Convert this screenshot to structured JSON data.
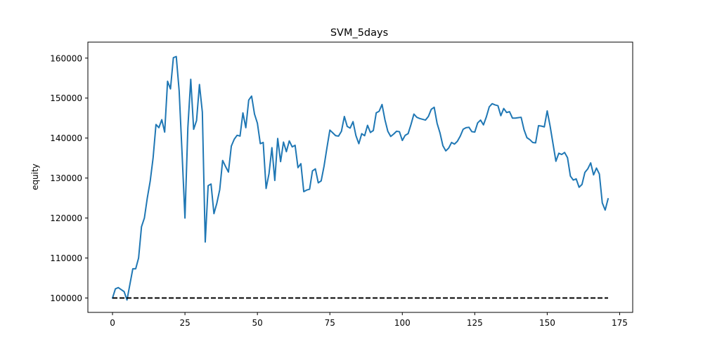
{
  "chart_data": {
    "type": "line",
    "title": "SVM_5days",
    "xlabel": "",
    "ylabel": "equity",
    "xlim": [
      -8.5,
      179.5
    ],
    "ylim": [
      96400,
      164000
    ],
    "xticks": [
      0,
      25,
      50,
      75,
      100,
      125,
      150,
      175
    ],
    "xtick_labels": [
      "0",
      "25",
      "50",
      "75",
      "100",
      "125",
      "150",
      "175"
    ],
    "yticks": [
      100000,
      110000,
      120000,
      130000,
      140000,
      150000,
      160000
    ],
    "ytick_labels": [
      "100000",
      "110000",
      "120000",
      "130000",
      "140000",
      "150000",
      "160000"
    ],
    "grid": false,
    "series": [
      {
        "color": "#1f77b4",
        "style": "solid",
        "x_start": 0,
        "values": [
          100000,
          102300,
          102600,
          102100,
          101600,
          99500,
          103400,
          107300,
          107300,
          110000,
          117800,
          120000,
          125000,
          129200,
          135000,
          143400,
          142600,
          144600,
          141500,
          154200,
          152300,
          160100,
          160400,
          151800,
          136200,
          120000,
          142600,
          154700,
          142200,
          144400,
          153400,
          146500,
          114000,
          128100,
          128500,
          121100,
          123700,
          127100,
          134400,
          132900,
          131500,
          138000,
          139700,
          140700,
          140500,
          146300,
          142600,
          149500,
          150500,
          146000,
          143700,
          138600,
          138900,
          127400,
          131100,
          137600,
          129400,
          139900,
          134100,
          139000,
          136600,
          139300,
          137800,
          138200,
          132600,
          133600,
          126600,
          127000,
          127200,
          131800,
          132300,
          128800,
          129300,
          133000,
          137600,
          142000,
          141300,
          140600,
          140500,
          141700,
          145400,
          142900,
          142500,
          144100,
          140600,
          138600,
          141100,
          140600,
          143200,
          141400,
          141900,
          146300,
          146700,
          148400,
          144600,
          141700,
          140400,
          141000,
          141700,
          141600,
          139400,
          140700,
          141100,
          143400,
          146000,
          145200,
          144900,
          144700,
          144500,
          145400,
          147200,
          147700,
          143700,
          141300,
          138100,
          136800,
          137500,
          138900,
          138500,
          139200,
          140500,
          142200,
          142600,
          142700,
          141600,
          141500,
          143800,
          144500,
          143300,
          145300,
          147800,
          148600,
          148300,
          148100,
          145600,
          147400,
          146400,
          146600,
          145000,
          145000,
          145100,
          145200,
          142100,
          140100,
          139600,
          138900,
          138800,
          143100,
          143000,
          142800,
          146800,
          143000,
          138600,
          134200,
          136200,
          135900,
          136400,
          135100,
          130500,
          129500,
          129800,
          127700,
          128400,
          131400,
          132300,
          133800,
          130800,
          132500,
          131000,
          123800,
          122000,
          124800
        ]
      },
      {
        "color": "#000000",
        "style": "dashed",
        "x": [
          0,
          171
        ],
        "values": [
          100000,
          100000
        ]
      }
    ]
  }
}
